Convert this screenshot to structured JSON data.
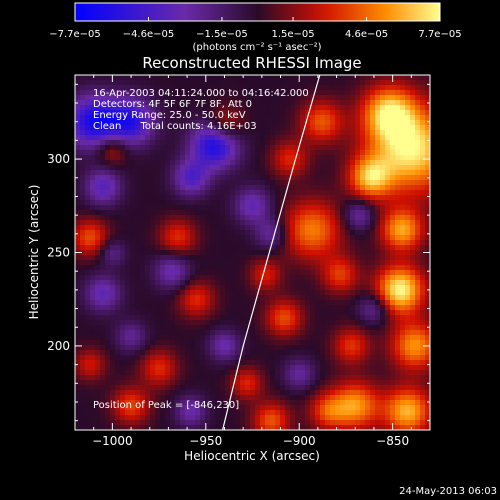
{
  "chart_data": {
    "type": "heatmap",
    "title": "Reconstructed RHESSI Image",
    "xlabel": "Heliocentric X (arcsec)",
    "ylabel": "Heliocentric Y (arcsec)",
    "xlim": [
      -1020,
      -830
    ],
    "ylim": [
      155,
      345
    ],
    "x_ticks": [
      -1000,
      -950,
      -900,
      -850
    ],
    "x_tick_labels": [
      "−1000",
      "−950",
      "−900",
      "−850"
    ],
    "y_ticks": [
      200,
      250,
      300
    ],
    "y_tick_labels": [
      "200",
      "250",
      "300"
    ],
    "grid": false,
    "annotations": [
      "16-Apr-2003 04:11:24.000 to 04:16:42.000",
      "Detectors: 4F 5F 6F 7F 8F, Att 0",
      "Energy Range: 25.0 - 50.0 keV",
      "Clean      Total counts: 4.16E+03"
    ],
    "peak_label": "Position of Peak = [-846,230]",
    "peak": {
      "x": -846,
      "y": 230
    },
    "limb_points": [
      [
        -941,
        155
      ],
      [
        -930,
        200
      ],
      [
        -916,
        250
      ],
      [
        -902,
        300
      ],
      [
        -889,
        345
      ]
    ],
    "colorbar": {
      "tick_values": [
        -7.7e-05,
        -4.6e-05,
        -1.5e-05,
        1.5e-05,
        4.6e-05,
        7.7e-05
      ],
      "tick_labels": [
        "−7.7e−05",
        "−4.6e−05",
        "−1.5e−05",
        "1.5e−05",
        "4.6e−05",
        "7.7e−05"
      ],
      "range": [
        -7.7e-05,
        7.7e-05
      ],
      "unit_label": "(photons cm⁻² s⁻¹ asec⁻²)",
      "colors": [
        "#0000ff",
        "#6a2aa8",
        "#2a0a2a",
        "#d01000",
        "#ff8c00",
        "#ffff90"
      ]
    },
    "blobs": [
      {
        "x": -846,
        "y": 230,
        "v": 7.7e-05,
        "r": 9
      },
      {
        "x": -840,
        "y": 305,
        "v": 7.5e-05,
        "r": 16
      },
      {
        "x": -852,
        "y": 325,
        "v": 6e-05,
        "r": 10
      },
      {
        "x": -862,
        "y": 290,
        "v": 5.6e-05,
        "r": 8
      },
      {
        "x": -845,
        "y": 262,
        "v": 5.8e-05,
        "r": 8
      },
      {
        "x": -838,
        "y": 200,
        "v": 5.5e-05,
        "r": 9
      },
      {
        "x": -842,
        "y": 165,
        "v": 6.2e-05,
        "r": 9
      },
      {
        "x": -870,
        "y": 168,
        "v": 5.6e-05,
        "r": 9
      },
      {
        "x": -872,
        "y": 200,
        "v": 3.5e-05,
        "r": 7
      },
      {
        "x": -885,
        "y": 165,
        "v": 3.6e-05,
        "r": 7
      },
      {
        "x": -893,
        "y": 262,
        "v": 5e-05,
        "r": 11
      },
      {
        "x": -878,
        "y": 238,
        "v": 3.6e-05,
        "r": 7
      },
      {
        "x": -888,
        "y": 320,
        "v": 4.2e-05,
        "r": 8
      },
      {
        "x": -905,
        "y": 300,
        "v": 3.2e-05,
        "r": 7
      },
      {
        "x": -908,
        "y": 215,
        "v": 4e-05,
        "r": 7
      },
      {
        "x": -918,
        "y": 238,
        "v": 3e-05,
        "r": 6
      },
      {
        "x": -915,
        "y": 160,
        "v": 4.2e-05,
        "r": 7
      },
      {
        "x": -928,
        "y": 180,
        "v": 3.2e-05,
        "r": 6
      },
      {
        "x": -940,
        "y": 318,
        "v": 3.6e-05,
        "r": 7
      },
      {
        "x": -965,
        "y": 258,
        "v": 3.4e-05,
        "r": 7
      },
      {
        "x": -955,
        "y": 225,
        "v": 3.3e-05,
        "r": 7
      },
      {
        "x": -975,
        "y": 188,
        "v": 3.3e-05,
        "r": 7
      },
      {
        "x": -1012,
        "y": 258,
        "v": 4e-05,
        "r": 7
      },
      {
        "x": -1000,
        "y": 305,
        "v": 3e-05,
        "r": 6
      },
      {
        "x": -990,
        "y": 168,
        "v": 3.8e-05,
        "r": 7
      },
      {
        "x": -1012,
        "y": 190,
        "v": 2.8e-05,
        "r": 6
      },
      {
        "x": -1010,
        "y": 320,
        "v": -6.6e-05,
        "r": 10
      },
      {
        "x": -990,
        "y": 320,
        "v": -5.6e-05,
        "r": 9
      },
      {
        "x": -945,
        "y": 308,
        "v": -6.8e-05,
        "r": 9
      },
      {
        "x": -958,
        "y": 290,
        "v": -4.2e-05,
        "r": 7
      },
      {
        "x": -925,
        "y": 275,
        "v": -3.6e-05,
        "r": 7
      },
      {
        "x": -1005,
        "y": 285,
        "v": -4e-05,
        "r": 7
      },
      {
        "x": -968,
        "y": 240,
        "v": -3.4e-05,
        "r": 7
      },
      {
        "x": -915,
        "y": 260,
        "v": -3e-05,
        "r": 6
      },
      {
        "x": -1005,
        "y": 228,
        "v": -3.6e-05,
        "r": 7
      },
      {
        "x": -940,
        "y": 200,
        "v": -3.2e-05,
        "r": 6
      },
      {
        "x": -958,
        "y": 165,
        "v": -3.2e-05,
        "r": 6
      },
      {
        "x": -900,
        "y": 185,
        "v": -2.8e-05,
        "r": 6
      },
      {
        "x": -868,
        "y": 270,
        "v": -3.2e-05,
        "r": 6
      },
      {
        "x": -860,
        "y": 220,
        "v": -3e-05,
        "r": 6
      },
      {
        "x": -990,
        "y": 205,
        "v": -2.6e-05,
        "r": 6
      },
      {
        "x": -1000,
        "y": 250,
        "v": -2.4e-05,
        "r": 5
      }
    ]
  },
  "footer": {
    "timestamp": "24-May-2013 06:03"
  }
}
